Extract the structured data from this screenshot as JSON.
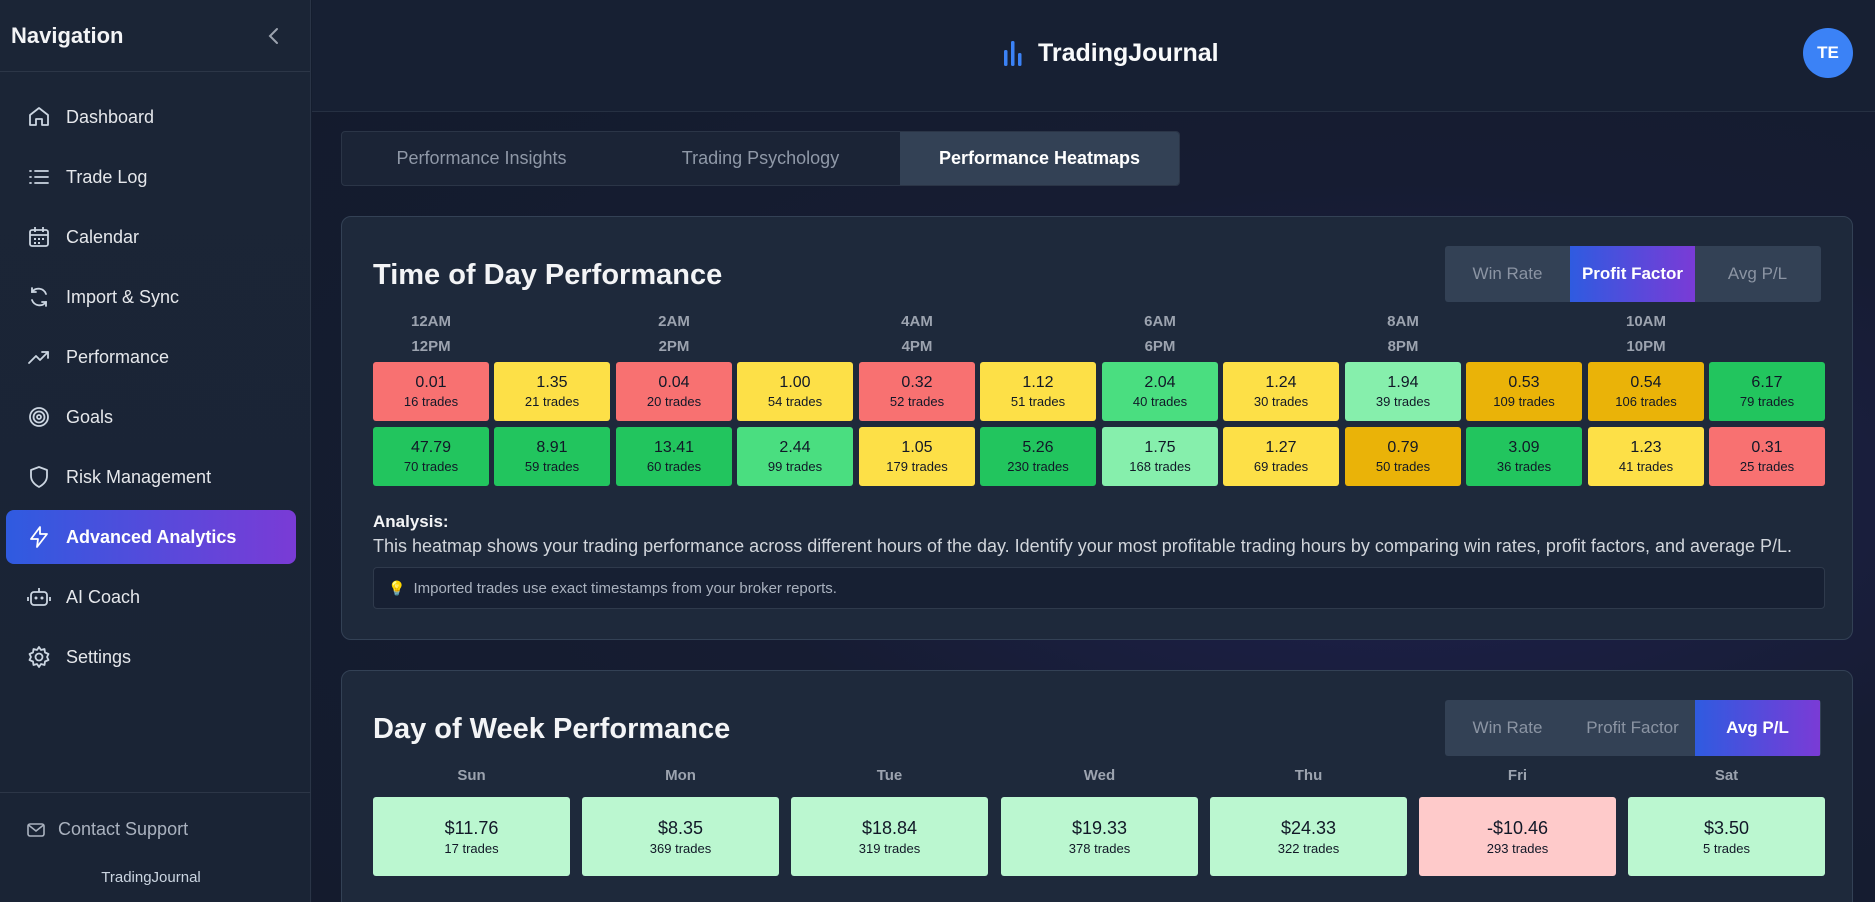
{
  "sidebar": {
    "title": "Navigation",
    "items": [
      {
        "label": "Dashboard",
        "icon": "home-icon",
        "active": false
      },
      {
        "label": "Trade Log",
        "icon": "list-icon",
        "active": false
      },
      {
        "label": "Calendar",
        "icon": "calendar-icon",
        "active": false
      },
      {
        "label": "Import & Sync",
        "icon": "sync-icon",
        "active": false
      },
      {
        "label": "Performance",
        "icon": "trending-up-icon",
        "active": false
      },
      {
        "label": "Goals",
        "icon": "target-icon",
        "active": false
      },
      {
        "label": "Risk Management",
        "icon": "shield-icon",
        "active": false
      },
      {
        "label": "Advanced Analytics",
        "icon": "lightning-icon",
        "active": true
      },
      {
        "label": "AI Coach",
        "icon": "robot-icon",
        "active": false
      },
      {
        "label": "Settings",
        "icon": "gear-icon",
        "active": false
      }
    ],
    "footer": {
      "support_label": "Contact Support",
      "brand": "TradingJournal"
    }
  },
  "header": {
    "brand": "TradingJournal",
    "avatar_initials": "TE"
  },
  "tabs": [
    {
      "label": "Performance Insights",
      "active": false
    },
    {
      "label": "Trading Psychology",
      "active": false
    },
    {
      "label": "Performance Heatmaps",
      "active": true
    }
  ],
  "time_of_day": {
    "title": "Time of Day Performance",
    "metrics": [
      {
        "label": "Win Rate",
        "active": false
      },
      {
        "label": "Profit Factor",
        "active": true
      },
      {
        "label": "Avg P/L",
        "active": false
      }
    ],
    "hour_labels": [
      {
        "top": "12AM",
        "bottom": "12PM"
      },
      {
        "top": "2AM",
        "bottom": "2PM"
      },
      {
        "top": "4AM",
        "bottom": "4PM"
      },
      {
        "top": "6AM",
        "bottom": "6PM"
      },
      {
        "top": "8AM",
        "bottom": "8PM"
      },
      {
        "top": "10AM",
        "bottom": "10PM"
      }
    ],
    "rows": [
      [
        {
          "value": "0.01",
          "trades": "16 trades",
          "color": "#f87171"
        },
        {
          "value": "1.35",
          "trades": "21 trades",
          "color": "#fde047"
        },
        {
          "value": "0.04",
          "trades": "20 trades",
          "color": "#f87171"
        },
        {
          "value": "1.00",
          "trades": "54 trades",
          "color": "#fde047"
        },
        {
          "value": "0.32",
          "trades": "52 trades",
          "color": "#f87171"
        },
        {
          "value": "1.12",
          "trades": "51 trades",
          "color": "#fde047"
        },
        {
          "value": "2.04",
          "trades": "40 trades",
          "color": "#4ade80"
        },
        {
          "value": "1.24",
          "trades": "30 trades",
          "color": "#fde047"
        },
        {
          "value": "1.94",
          "trades": "39 trades",
          "color": "#86efac"
        },
        {
          "value": "0.53",
          "trades": "109 trades",
          "color": "#eab308"
        },
        {
          "value": "0.54",
          "trades": "106 trades",
          "color": "#eab308"
        },
        {
          "value": "6.17",
          "trades": "79 trades",
          "color": "#22c55e"
        }
      ],
      [
        {
          "value": "47.79",
          "trades": "70 trades",
          "color": "#22c55e"
        },
        {
          "value": "8.91",
          "trades": "59 trades",
          "color": "#22c55e"
        },
        {
          "value": "13.41",
          "trades": "60 trades",
          "color": "#22c55e"
        },
        {
          "value": "2.44",
          "trades": "99 trades",
          "color": "#4ade80"
        },
        {
          "value": "1.05",
          "trades": "179 trades",
          "color": "#fde047"
        },
        {
          "value": "5.26",
          "trades": "230 trades",
          "color": "#22c55e"
        },
        {
          "value": "1.75",
          "trades": "168 trades",
          "color": "#86efac"
        },
        {
          "value": "1.27",
          "trades": "69 trades",
          "color": "#fde047"
        },
        {
          "value": "0.79",
          "trades": "50 trades",
          "color": "#eab308"
        },
        {
          "value": "3.09",
          "trades": "36 trades",
          "color": "#22c55e"
        },
        {
          "value": "1.23",
          "trades": "41 trades",
          "color": "#fde047"
        },
        {
          "value": "0.31",
          "trades": "25 trades",
          "color": "#f87171"
        }
      ]
    ],
    "analysis_label": "Analysis:",
    "analysis_text": "This heatmap shows your trading performance across different hours of the day. Identify your most profitable trading hours by comparing win rates, profit factors, and average P/L.",
    "tip": "Imported trades use exact timestamps from your broker reports."
  },
  "day_of_week": {
    "title": "Day of Week Performance",
    "metrics": [
      {
        "label": "Win Rate",
        "active": false
      },
      {
        "label": "Profit Factor",
        "active": false
      },
      {
        "label": "Avg P/L",
        "active": true
      }
    ],
    "days": [
      {
        "day": "Sun",
        "value": "$11.76",
        "trades": "17 trades",
        "color": "#bbf7d0"
      },
      {
        "day": "Mon",
        "value": "$8.35",
        "trades": "369 trades",
        "color": "#bbf7d0"
      },
      {
        "day": "Tue",
        "value": "$18.84",
        "trades": "319 trades",
        "color": "#bbf7d0"
      },
      {
        "day": "Wed",
        "value": "$19.33",
        "trades": "378 trades",
        "color": "#bbf7d0"
      },
      {
        "day": "Thu",
        "value": "$24.33",
        "trades": "322 trades",
        "color": "#bbf7d0"
      },
      {
        "day": "Fri",
        "value": "-$10.46",
        "trades": "293 trades",
        "color": "#fecaca"
      },
      {
        "day": "Sat",
        "value": "$3.50",
        "trades": "5 trades",
        "color": "#bbf7d0"
      }
    ]
  }
}
